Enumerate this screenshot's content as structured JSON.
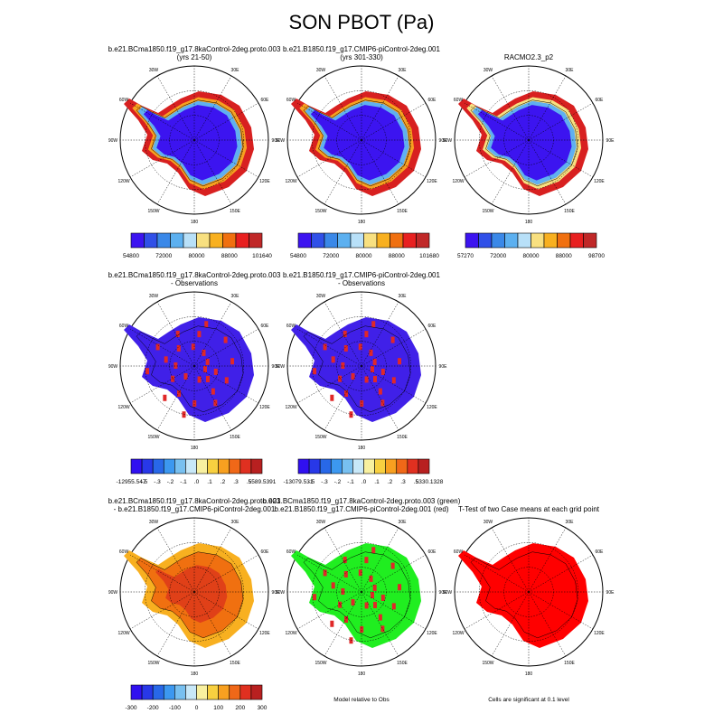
{
  "title": "SON PBOT (Pa)",
  "lon_labels": [
    "30E",
    "60E",
    "90E",
    "120E",
    "150E",
    "180",
    "150W",
    "120W",
    "90W",
    "60W",
    "30W"
  ],
  "panels": [
    {
      "title": [
        "b.e21.BCma1850.f19_g17.8kaControl-2deg.proto.003",
        "(yrs 21-50)"
      ]
    },
    {
      "title": [
        "b.e21.B1850.f19_g17.CMIP6-piControl-2deg.001",
        "(yrs 301-330)"
      ]
    },
    {
      "title": [
        "RACMO2.3_p2"
      ]
    },
    {
      "title": [
        "b.e21.BCma1850.f19_g17.8kaControl-2deg.proto.003",
        "- Observations"
      ]
    },
    {
      "title": [
        "b.e21.B1850.f19_g17.CMIP6-piControl-2deg.001",
        "- Observations"
      ]
    },
    {
      "title": [
        "b.e21.BCma1850.f19_g17.8kaControl-2deg.proto.003",
        "- b.e21.B1850.f19_g17.CMIP6-piControl-2deg.001"
      ]
    },
    {
      "title": [
        "b.e21.BCma1850.f19_g17.8kaControl-2deg.proto.003 (green)",
        "b.e21.B1850.f19_g17.CMIP6-piControl-2deg.001 (red)"
      ]
    },
    {
      "title": [
        "T-Test of two Case means at each grid point"
      ]
    }
  ],
  "colorbars": [
    {
      "labels": [
        "54800",
        "72000",
        "80000",
        "88000",
        "101640"
      ],
      "colors": [
        "#3c14f0",
        "#3050e8",
        "#3a88e8",
        "#5cb0f0",
        "#b8e0f8",
        "#f8e080",
        "#f8b020",
        "#f07010",
        "#e82020",
        "#c02828"
      ]
    },
    {
      "labels": [
        "54800",
        "72000",
        "80000",
        "88000",
        "101680"
      ],
      "colors": [
        "#3c14f0",
        "#3050e8",
        "#3a88e8",
        "#5cb0f0",
        "#b8e0f8",
        "#f8e080",
        "#f8b020",
        "#f07010",
        "#e82020",
        "#c02828"
      ]
    },
    {
      "labels": [
        "57270",
        "72000",
        "80000",
        "88000",
        "98700"
      ],
      "colors": [
        "#3c14f0",
        "#3050e8",
        "#3a88e8",
        "#5cb0f0",
        "#b8e0f8",
        "#f8e080",
        "#f8b020",
        "#f07010",
        "#e82020",
        "#c02828"
      ]
    },
    {
      "labels": [
        "-12955.547",
        "-.5",
        "-.3",
        "-.2",
        "-.1",
        ".0",
        ".1",
        ".2",
        ".3",
        ".5",
        "5589.5391"
      ],
      "colors": [
        "#3010f0",
        "#2838e8",
        "#2868e8",
        "#3c98f0",
        "#78c0f0",
        "#c8e8f8",
        "#f8f0a0",
        "#f8d040",
        "#f8a020",
        "#f06818",
        "#e03020",
        "#b82020"
      ]
    },
    {
      "labels": [
        "-13079.531",
        "-.5",
        "-.3",
        "-.2",
        "-.1",
        ".0",
        ".1",
        ".2",
        ".3",
        ".5",
        "5330.1328"
      ],
      "colors": [
        "#3010f0",
        "#2838e8",
        "#2868e8",
        "#3c98f0",
        "#78c0f0",
        "#c8e8f8",
        "#f8f0a0",
        "#f8d040",
        "#f8a020",
        "#f06818",
        "#e03020",
        "#b82020"
      ]
    },
    {
      "labels": [
        "-300",
        "-200",
        "-100",
        "0",
        "100",
        "200",
        "300"
      ],
      "colors": [
        "#3010f0",
        "#2838e8",
        "#2868e8",
        "#3c98f0",
        "#78c0f0",
        "#c8e8f8",
        "#f8f0a0",
        "#f8d040",
        "#f8a020",
        "#f06818",
        "#e03020",
        "#b82020"
      ]
    }
  ],
  "notes": [
    "Model relative to Obs",
    "Cells are significant at 0.1 level"
  ]
}
